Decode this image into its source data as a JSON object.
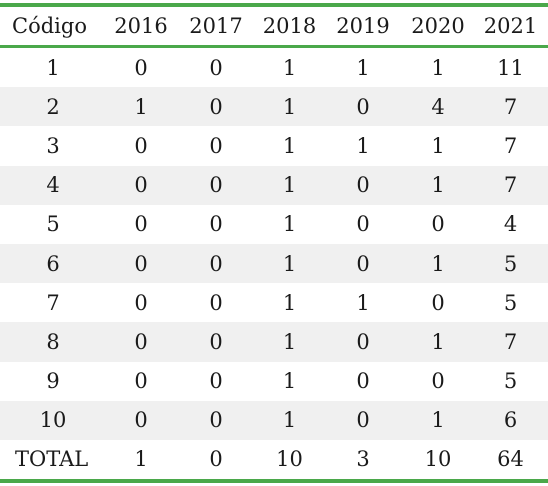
{
  "chart_data": {
    "type": "table",
    "columns": [
      "Código",
      "2016",
      "2017",
      "2018",
      "2019",
      "2020",
      "2021"
    ],
    "rows": [
      [
        "1",
        "0",
        "0",
        "1",
        "1",
        "1",
        "11"
      ],
      [
        "2",
        "1",
        "0",
        "1",
        "0",
        "4",
        "7"
      ],
      [
        "3",
        "0",
        "0",
        "1",
        "1",
        "1",
        "7"
      ],
      [
        "4",
        "0",
        "0",
        "1",
        "0",
        "1",
        "7"
      ],
      [
        "5",
        "0",
        "0",
        "1",
        "0",
        "0",
        "4"
      ],
      [
        "6",
        "0",
        "0",
        "1",
        "0",
        "1",
        "5"
      ],
      [
        "7",
        "0",
        "0",
        "1",
        "1",
        "0",
        "5"
      ],
      [
        "8",
        "0",
        "0",
        "1",
        "0",
        "1",
        "7"
      ],
      [
        "9",
        "0",
        "0",
        "1",
        "0",
        "0",
        "5"
      ],
      [
        "10",
        "0",
        "0",
        "1",
        "0",
        "1",
        "6"
      ]
    ],
    "total": [
      "TOTAL",
      "1",
      "0",
      "10",
      "3",
      "10",
      "64"
    ],
    "colors": {
      "rule": "#4aa84a",
      "row_shade": "#f0f0f0"
    }
  }
}
